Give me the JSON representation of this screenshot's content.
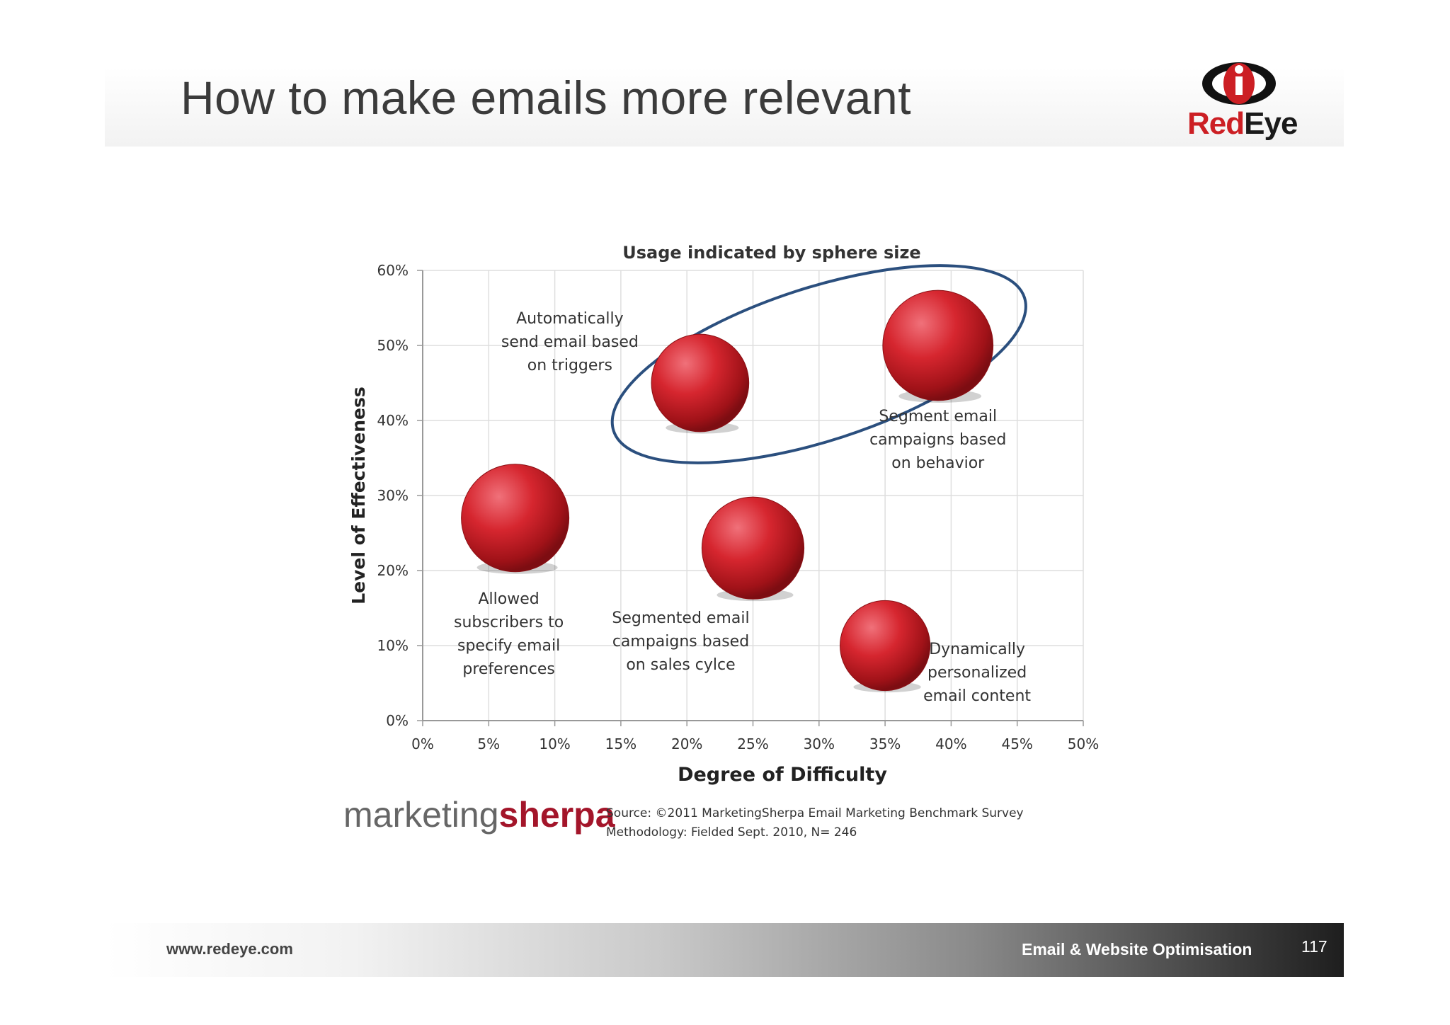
{
  "slide": {
    "title": "How to make emails more relevant"
  },
  "logo": {
    "brand_part1": "Red",
    "brand_part2": "Eye",
    "colors": {
      "red": "#cc1f24",
      "dark": "#1a1a1a"
    }
  },
  "chart_data": {
    "type": "scatter",
    "variant": "bubble",
    "title": "Usage indicated by sphere size",
    "xlabel": "Degree of Difficulty",
    "ylabel": "Level of Effectiveness",
    "xlim": [
      0,
      50
    ],
    "ylim": [
      0,
      60
    ],
    "x_ticks": [
      "0%",
      "5%",
      "10%",
      "15%",
      "20%",
      "25%",
      "30%",
      "35%",
      "40%",
      "45%",
      "50%"
    ],
    "y_ticks": [
      "0%",
      "10%",
      "20%",
      "30%",
      "40%",
      "50%",
      "60%"
    ],
    "grid": true,
    "bubble_color": "#c8202a",
    "highlight_color": "#2b4f7e",
    "points": [
      {
        "label": [
          "Allowed",
          "subscribers to",
          "specify email",
          "preferences"
        ],
        "x": 7,
        "y": 27,
        "usage": 1.0
      },
      {
        "label": [
          "Automatically",
          "send email based",
          "on triggers"
        ],
        "x": 21,
        "y": 45,
        "usage": 0.82
      },
      {
        "label": [
          "Segmented email",
          "campaigns based",
          "on sales cylce"
        ],
        "x": 25,
        "y": 23,
        "usage": 0.9
      },
      {
        "label": [
          "Dynamically",
          "personalized",
          "email content"
        ],
        "x": 35,
        "y": 10,
        "usage": 0.7
      },
      {
        "label": [
          "Segment email",
          "campaigns based",
          "on behavior"
        ],
        "x": 39,
        "y": 50,
        "usage": 1.05
      }
    ],
    "highlight": {
      "shape": "ellipse",
      "encloses": [
        "Automatically send email based on triggers",
        "Segment email campaigns based on behavior"
      ]
    }
  },
  "source": {
    "logo_part1": "marketing",
    "logo_part2": "sherpa",
    "line1": "Source: ©2011 MarketingSherpa Email Marketing Benchmark Survey",
    "line2": "Methodology: Fielded Sept. 2010, N= 246"
  },
  "footer": {
    "url": "www.redeye.com",
    "caption": "Email & Website Optimisation",
    "page_number": "117"
  }
}
